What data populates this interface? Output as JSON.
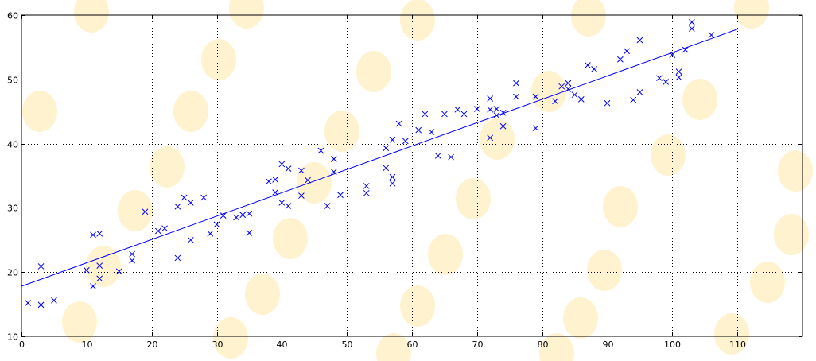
{
  "chart_data": {
    "type": "scatter",
    "title": "",
    "xlabel": "",
    "ylabel": "",
    "xlim": [
      0,
      120
    ],
    "ylim": [
      10,
      60
    ],
    "x_ticks": [
      0,
      10,
      20,
      30,
      40,
      50,
      60,
      70,
      80,
      90,
      100,
      110
    ],
    "y_ticks": [
      10,
      20,
      30,
      40,
      50,
      60
    ],
    "grid": true,
    "colors": {
      "series": "#0000ff",
      "grid": "#000000"
    },
    "series": [
      {
        "marker": "x",
        "points": [
          [
            1,
            15.2
          ],
          [
            3,
            20.9
          ],
          [
            3,
            14.9
          ],
          [
            5,
            15.6
          ],
          [
            10,
            20.3
          ],
          [
            11,
            25.8
          ],
          [
            11,
            17.8
          ],
          [
            12,
            26.0
          ],
          [
            12,
            19.0
          ],
          [
            12,
            21.0
          ],
          [
            15,
            20.1
          ],
          [
            17,
            22.8
          ],
          [
            17,
            21.8
          ],
          [
            19,
            29.4
          ],
          [
            21,
            26.4
          ],
          [
            22,
            26.8
          ],
          [
            24,
            30.2
          ],
          [
            24,
            22.2
          ],
          [
            25,
            31.6
          ],
          [
            26,
            25.0
          ],
          [
            26,
            30.8
          ],
          [
            28,
            31.6
          ],
          [
            29,
            26.0
          ],
          [
            30,
            27.4
          ],
          [
            31,
            28.8
          ],
          [
            33,
            28.5
          ],
          [
            34,
            28.9
          ],
          [
            35,
            29.1
          ],
          [
            35,
            26.1
          ],
          [
            38,
            34.1
          ],
          [
            39,
            34.4
          ],
          [
            39,
            32.4
          ],
          [
            40,
            36.8
          ],
          [
            40,
            30.8
          ],
          [
            41,
            30.3
          ],
          [
            41,
            36.1
          ],
          [
            43,
            35.8
          ],
          [
            43,
            31.9
          ],
          [
            44,
            34.3
          ],
          [
            46,
            38.9
          ],
          [
            47,
            30.3
          ],
          [
            48,
            37.6
          ],
          [
            48,
            35.6
          ],
          [
            49,
            32.0
          ],
          [
            53,
            33.4
          ],
          [
            53,
            32.3
          ],
          [
            56,
            39.3
          ],
          [
            56,
            36.2
          ],
          [
            57,
            40.6
          ],
          [
            57,
            34.8
          ],
          [
            57,
            33.8
          ],
          [
            58,
            43.1
          ],
          [
            59,
            40.4
          ],
          [
            61,
            42.1
          ],
          [
            62,
            44.6
          ],
          [
            63,
            41.8
          ],
          [
            64,
            38.1
          ],
          [
            65,
            44.6
          ],
          [
            66,
            37.9
          ],
          [
            67,
            45.3
          ],
          [
            68,
            44.6
          ],
          [
            70,
            45.4
          ],
          [
            72,
            47.0
          ],
          [
            72,
            45.3
          ],
          [
            72,
            40.9
          ],
          [
            73,
            45.4
          ],
          [
            73,
            44.4
          ],
          [
            74,
            44.8
          ],
          [
            74,
            42.7
          ],
          [
            76,
            49.4
          ],
          [
            76,
            47.3
          ],
          [
            79,
            47.3
          ],
          [
            79,
            42.4
          ],
          [
            82,
            46.6
          ],
          [
            83,
            48.9
          ],
          [
            84,
            49.4
          ],
          [
            84,
            48.5
          ],
          [
            85,
            47.6
          ],
          [
            86,
            46.9
          ],
          [
            87,
            52.2
          ],
          [
            88,
            51.6
          ],
          [
            90,
            46.3
          ],
          [
            92,
            53.1
          ],
          [
            93,
            54.4
          ],
          [
            94,
            46.8
          ],
          [
            95,
            56.1
          ],
          [
            95,
            48.0
          ],
          [
            98,
            50.2
          ],
          [
            99,
            49.6
          ],
          [
            100,
            53.8
          ],
          [
            101,
            51.2
          ],
          [
            101,
            50.3
          ],
          [
            102,
            54.6
          ],
          [
            103,
            58.9
          ],
          [
            103,
            57.9
          ],
          [
            106,
            56.9
          ]
        ]
      }
    ],
    "fit_line": {
      "x": [
        0,
        110
      ],
      "y": [
        17.8,
        57.8
      ]
    }
  }
}
